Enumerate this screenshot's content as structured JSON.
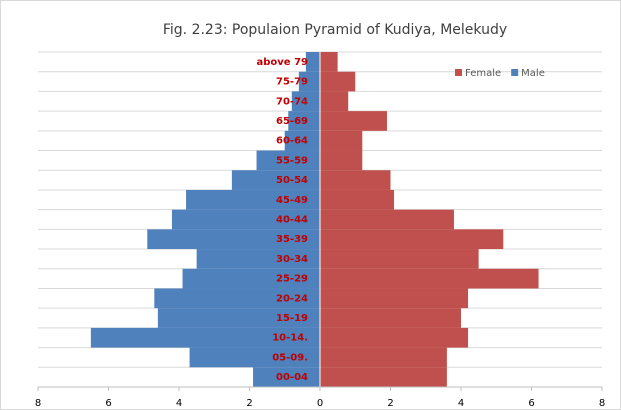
{
  "chart_data": {
    "type": "population-pyramid",
    "title": "Fig. 2.23: Populaion Pyramid of Kudiya, Melekudy",
    "categories": [
      "00-04",
      "05-09.",
      "10-14.",
      "15-19",
      "20-24",
      "25-29",
      "30-34",
      "35-39",
      "40-44",
      "45-49",
      "50-54",
      "55-59",
      "60-64",
      "65-69",
      "70-74",
      "75-79",
      "above 79"
    ],
    "series": [
      {
        "name": "Female",
        "color": "#c0504d",
        "side": "right",
        "values": [
          3.6,
          3.6,
          4.2,
          4.0,
          4.2,
          6.2,
          4.5,
          5.2,
          3.8,
          2.1,
          2.0,
          1.2,
          1.2,
          1.9,
          0.8,
          1.0,
          0.5
        ]
      },
      {
        "name": "Male",
        "color": "#4f81bd",
        "side": "left",
        "values": [
          1.9,
          3.7,
          6.5,
          4.6,
          4.7,
          3.9,
          3.5,
          4.9,
          4.2,
          3.8,
          2.5,
          1.8,
          1.0,
          0.9,
          0.8,
          0.6,
          0.4
        ]
      }
    ],
    "xlim": [
      -8,
      8
    ],
    "xticks": [
      {
        "value": -8,
        "label": "8"
      },
      {
        "value": -6,
        "label": "6"
      },
      {
        "value": -4,
        "label": "4"
      },
      {
        "value": -2,
        "label": "2"
      },
      0,
      2,
      4,
      6,
      8
    ],
    "grid": true,
    "legend": "top-right"
  }
}
